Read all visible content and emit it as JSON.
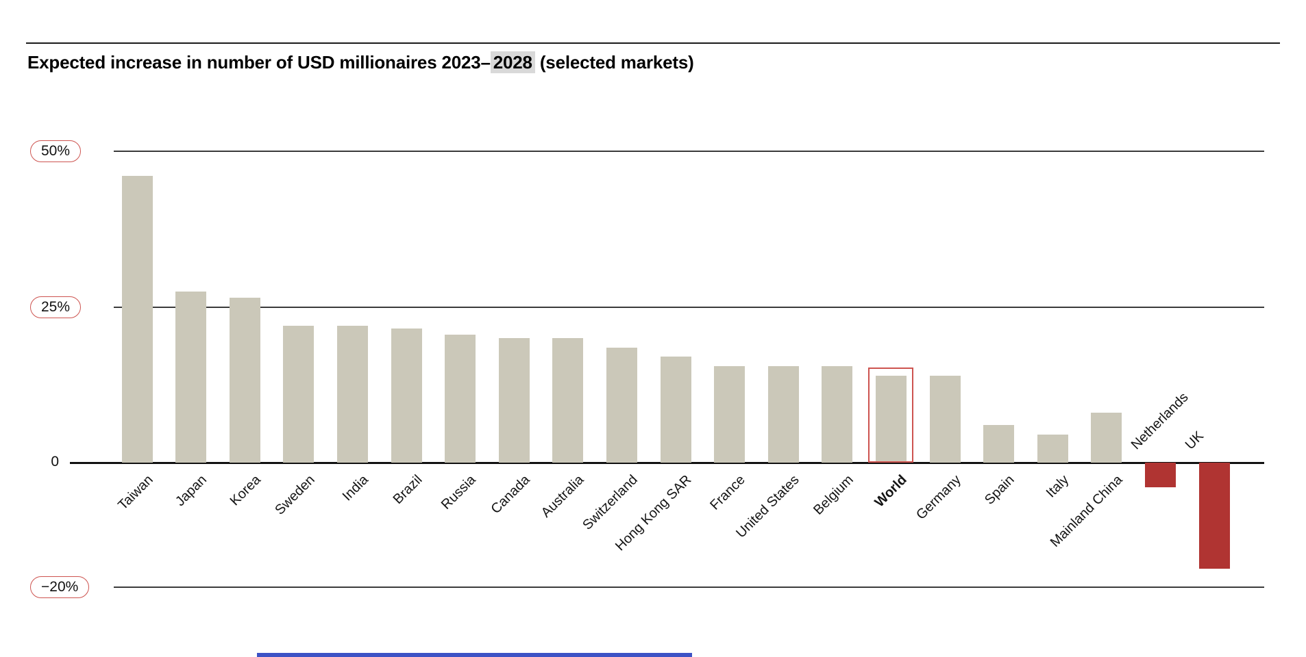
{
  "title": {
    "prefix": "Expected increase in number of USD millionaires 2023–",
    "highlight": "2028",
    "suffix": " (selected markets)"
  },
  "colors": {
    "bar_beige": "#cbc8b9",
    "bar_negative_red": "#b03432",
    "accent_outline_red": "#cd534f",
    "highlight_bg": "#d9d9d9",
    "gridline": "#3a3a3a",
    "bottom_bar_blue": "#3d52c5"
  },
  "chart_data": {
    "type": "bar",
    "title": "Expected increase in number of USD millionaires 2023–2028 (selected markets)",
    "xlabel": "",
    "ylabel": "",
    "unit": "%",
    "ylim": [
      -20,
      50
    ],
    "grid": "horizontal",
    "legend_position": "none",
    "categories": [
      "Taiwan",
      "Japan",
      "Korea",
      "Sweden",
      "India",
      "Brazil",
      "Russia",
      "Canada",
      "Australia",
      "Switzerland",
      "Hong Kong SAR",
      "France",
      "United States",
      "Belgium",
      "World",
      "Germany",
      "Spain",
      "Italy",
      "Mainland China",
      "Netherlands",
      "UK"
    ],
    "values": [
      46,
      27.5,
      26.5,
      22,
      22,
      21.5,
      20.5,
      20,
      20,
      18.5,
      17,
      15.5,
      15.5,
      15.5,
      14,
      14,
      6,
      4.5,
      8,
      -4,
      -17
    ],
    "highlighted_category": "World",
    "negative_categories": [
      "Netherlands",
      "UK"
    ],
    "axis_ticks": [
      {
        "label": "50%",
        "value": 50,
        "pill": true
      },
      {
        "label": "25%",
        "value": 25,
        "pill": true
      },
      {
        "label": "0",
        "value": 0,
        "pill": false
      },
      {
        "label": "−20%",
        "value": -20,
        "pill": true
      }
    ],
    "bar_color": "#cbc8b9",
    "negative_bar_color": "#b03432",
    "accent_red": "#cd534f"
  }
}
